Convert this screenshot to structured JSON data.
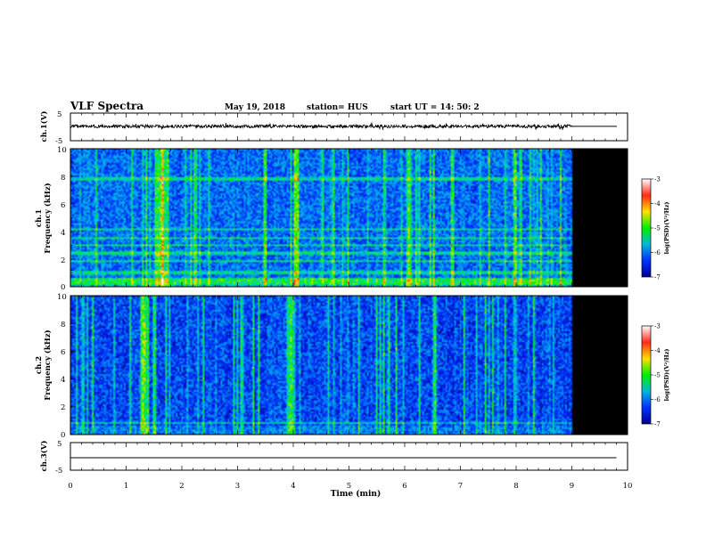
{
  "header": {
    "title": "VLF Spectra",
    "date": "May 19, 2018",
    "station": "station= HUS",
    "start": "start  UT =    14: 50: 2"
  },
  "colorbar": {
    "label": "log(PSD)(V²/Hz)",
    "range": [
      -7,
      -3
    ],
    "ticks": [
      "-3",
      "-4",
      "-5",
      "-6",
      "-7"
    ],
    "colors": [
      "#ffffff",
      "#ff2a1a",
      "#ffe000",
      "#00ee00",
      "#00b8d8",
      "#0030ff",
      "#000090"
    ]
  },
  "chart_data": [
    {
      "type": "line",
      "ylabel": "ch.1(V)",
      "ylim": [
        -5,
        5
      ],
      "yticks": [
        "5",
        "-5"
      ],
      "xlim": [
        0,
        10
      ],
      "data_end_min": 9.0,
      "baseline_v": 0.2,
      "noise_amplitude_v": 0.6
    },
    {
      "type": "heatmap",
      "ylabel_line1": "ch.1",
      "ylabel_line2": "Frequency (kHz)",
      "ylim": [
        0,
        10
      ],
      "yticks": [
        "10",
        "8",
        "6",
        "4",
        "2",
        "0"
      ],
      "xlim": [
        0,
        10
      ],
      "data_end_min": 9.0,
      "background_level": -6.3,
      "bright_intervals_min": [
        [
          1.5,
          1.75
        ],
        [
          4.0,
          4.1
        ],
        [
          6.0,
          6.1
        ]
      ],
      "frequency_lines_khz": [
        0.3,
        0.6,
        1.1,
        1.9,
        2.5,
        3.1,
        3.6,
        4.2,
        7.9
      ]
    },
    {
      "type": "heatmap",
      "ylabel_line1": "ch.2",
      "ylabel_line2": "Frequency (kHz)",
      "ylim": [
        0,
        10
      ],
      "yticks": [
        "10",
        "8",
        "6",
        "4",
        "2",
        "0"
      ],
      "xlim": [
        0,
        10
      ],
      "data_end_min": 9.0,
      "background_level": -6.5,
      "bright_intervals_min": [
        [
          1.25,
          1.38
        ],
        [
          3.9,
          4.0
        ]
      ],
      "frequency_lines_khz": [
        0.9
      ]
    },
    {
      "type": "line",
      "ylabel": "ch.3(V)",
      "ylim": [
        -5,
        5
      ],
      "yticks": [
        "5",
        "-5"
      ],
      "xlim": [
        0,
        10
      ],
      "data_end_min": 9.8,
      "baseline_v": -0.5,
      "noise_amplitude_v": 0
    }
  ],
  "xaxis": {
    "label": "Time (min)",
    "ticks": [
      "0",
      "1",
      "2",
      "3",
      "4",
      "5",
      "6",
      "7",
      "8",
      "9",
      "10"
    ]
  }
}
